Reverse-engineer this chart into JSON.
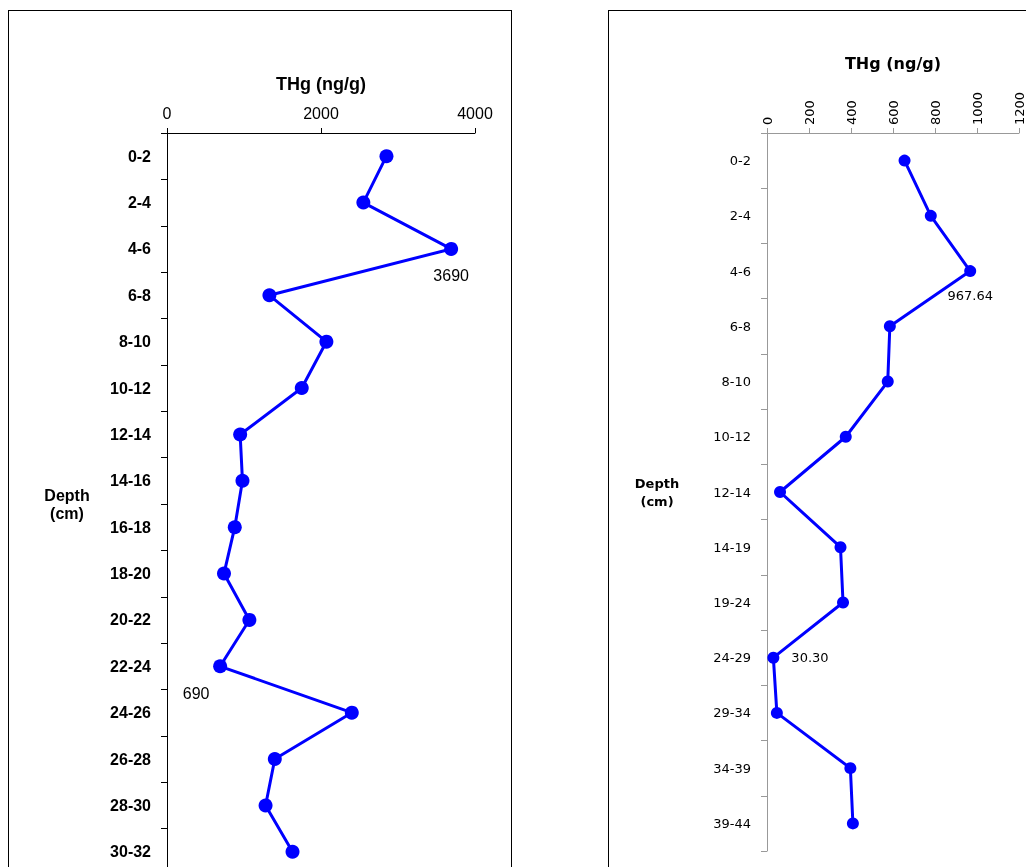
{
  "chart_data": [
    {
      "type": "line",
      "orientation": "horizontal",
      "xlabel": "THg (ng/g)",
      "ylabel": "Depth\n(cm)",
      "categories": [
        "0-2",
        "2-4",
        "4-6",
        "6-8",
        "8-10",
        "10-12",
        "12-14",
        "14-16",
        "16-18",
        "18-20",
        "20-22",
        "22-24",
        "24-26",
        "26-28",
        "28-30",
        "30-32"
      ],
      "xlim": [
        0,
        4000
      ],
      "xticks": [
        0,
        2000,
        4000
      ],
      "marker": "circle",
      "color": "#0000ff",
      "values": [
        2850,
        2550,
        3690,
        1330,
        2070,
        1750,
        950,
        980,
        880,
        740,
        1070,
        690,
        2400,
        1400,
        1280,
        1630
      ],
      "value_labels": [
        null,
        null,
        "3690",
        null,
        null,
        null,
        null,
        null,
        null,
        null,
        null,
        "690",
        null,
        null,
        null,
        null
      ]
    },
    {
      "type": "line",
      "orientation": "horizontal",
      "xlabel": "THg (ng/g)",
      "ylabel": "Depth\n(cm)",
      "categories": [
        "0-2",
        "2-4",
        "4-6",
        "6-8",
        "8-10",
        "10-12",
        "12-14",
        "14-19",
        "19-24",
        "24-29",
        "29-34",
        "34-39",
        "39-44"
      ],
      "xlim": [
        0,
        1200
      ],
      "xticks": [
        0,
        200,
        400,
        600,
        800,
        1000,
        1200
      ],
      "marker": "circle",
      "color": "#0000ff",
      "values": [
        655,
        780,
        967.64,
        585,
        575,
        375,
        62,
        350,
        362,
        30.3,
        47,
        397,
        409
      ],
      "value_labels": [
        null,
        null,
        "967.64",
        null,
        null,
        null,
        null,
        null,
        null,
        "30.30",
        null,
        null,
        null
      ]
    }
  ]
}
